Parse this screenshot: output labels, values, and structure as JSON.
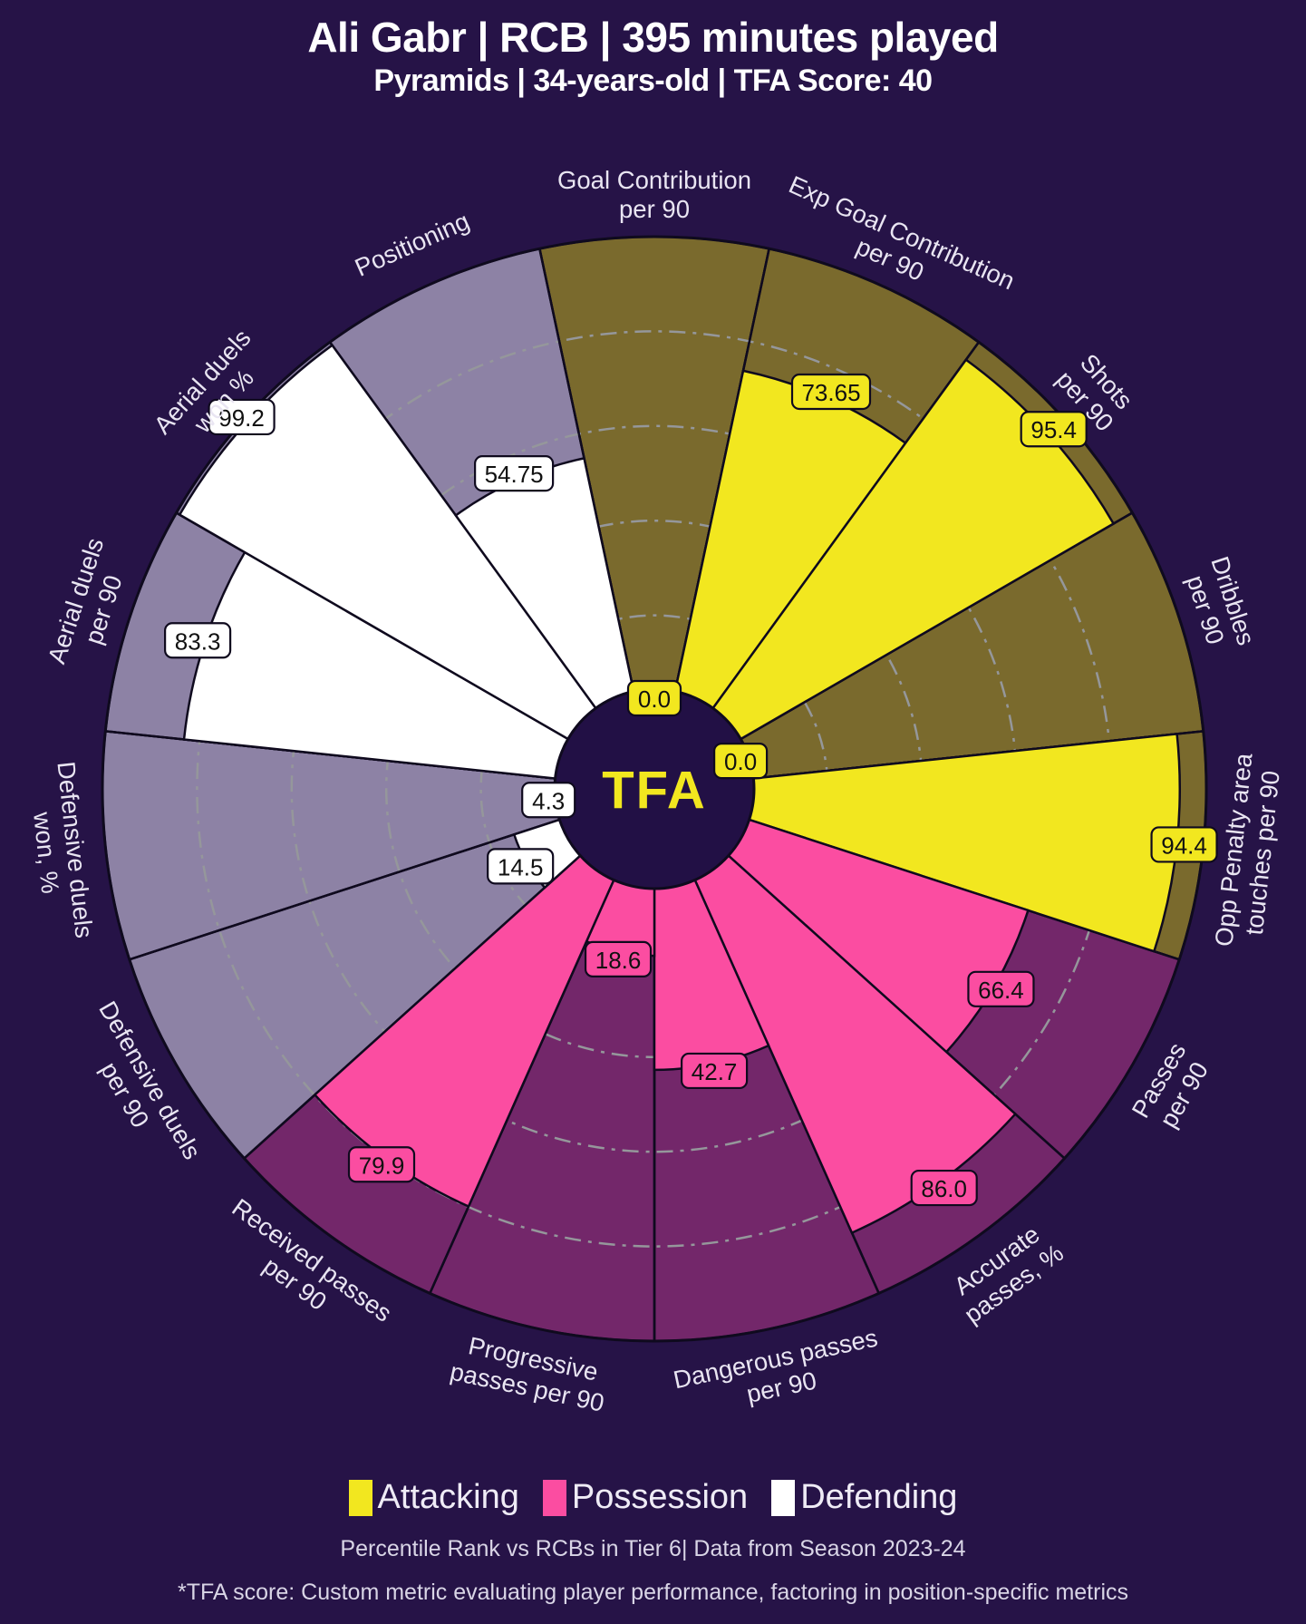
{
  "header": {
    "title": "Ali Gabr | RCB | 395 minutes played",
    "subtitle": "Pyramids | 34-years-old | TFA Score: 40"
  },
  "center_logo": "TFA",
  "legend": {
    "items": [
      {
        "label": "Attacking",
        "color": "#f2e71f"
      },
      {
        "label": "Possession",
        "color": "#fb4da1"
      },
      {
        "label": "Defending",
        "color": "#ffffff"
      }
    ]
  },
  "caption": "Percentile Rank vs RCBs in Tier 6| Data from Season 2023-24",
  "footnote": "*TFA score: Custom metric evaluating player performance, factoring in position-specific metrics",
  "colors": {
    "page_bg": "#261347",
    "center_circle": "#221045",
    "logo_text": "#f2e71f",
    "wedge_stroke": "#0f0a1e",
    "ring": "#95979b",
    "axis_label_text": "#e9e5f2",
    "value_text": "#111111"
  },
  "chart_data": {
    "type": "pie",
    "variant": "percentile-pizza-polar-bar",
    "title": "Ali Gabr | RCB | 395 minutes played",
    "subtitle": "Pyramids | 34-years-old | TFA Score: 40",
    "rlim": [
      0,
      100
    ],
    "ring_values": [
      20,
      40,
      60,
      80
    ],
    "grid": "dash-dot",
    "legend_position": "bottom",
    "groups": {
      "Attacking": {
        "color": "#f2e71f",
        "track": "#7a6a2d"
      },
      "Possession": {
        "color": "#fb4da1",
        "track": "#73276a"
      },
      "Defending": {
        "color": "#ffffff",
        "track": "#8d82a5"
      }
    },
    "slices": [
      {
        "label": "Goal Contribution per 90",
        "lines": [
          "Goal Contribution",
          "per 90"
        ],
        "value": 0.0,
        "display": "0.0",
        "group": "Attacking"
      },
      {
        "label": "Exp Goal Contribution per 90",
        "lines": [
          "Exp Goal Contribution",
          "per 90"
        ],
        "value": 73.65,
        "display": "73.65",
        "group": "Attacking"
      },
      {
        "label": "Shots per 90",
        "lines": [
          "Shots",
          "per 90"
        ],
        "value": 95.4,
        "display": "95.4",
        "group": "Attacking"
      },
      {
        "label": "Dribbles per 90",
        "lines": [
          "Dribbles",
          "per 90"
        ],
        "value": 0.0,
        "display": "0.0",
        "group": "Attacking"
      },
      {
        "label": "Opp Penalty area touches per 90",
        "lines": [
          "Opp Penalty area",
          "touches per 90"
        ],
        "value": 94.4,
        "display": "94.4",
        "group": "Attacking"
      },
      {
        "label": "Passes per 90",
        "lines": [
          "Passes",
          "per 90"
        ],
        "value": 66.4,
        "display": "66.4",
        "group": "Possession"
      },
      {
        "label": "Accurate passes, %",
        "lines": [
          "Accurate",
          "passes, %"
        ],
        "value": 86.0,
        "display": "86.0",
        "group": "Possession"
      },
      {
        "label": "Dangerous passes per 90",
        "lines": [
          "Dangerous passes",
          "per 90"
        ],
        "value": 42.7,
        "display": "42.7",
        "group": "Possession"
      },
      {
        "label": "Progressive passes per 90",
        "lines": [
          "Progressive",
          "passes per 90"
        ],
        "value": 18.6,
        "display": "18.6",
        "group": "Possession"
      },
      {
        "label": "Received passes per 90",
        "lines": [
          "Received passes",
          "per 90"
        ],
        "value": 79.9,
        "display": "79.9",
        "group": "Possession"
      },
      {
        "label": "Defensive duels per 90",
        "lines": [
          "Defensive duels",
          "per 90"
        ],
        "value": 14.5,
        "display": "14.5",
        "group": "Defending"
      },
      {
        "label": "Defensive duels won, %",
        "lines": [
          "Defensive duels",
          "won, %"
        ],
        "value": 4.3,
        "display": "4.3",
        "group": "Defending"
      },
      {
        "label": "Aerial duels per 90",
        "lines": [
          "Aerial duels",
          "per 90"
        ],
        "value": 83.3,
        "display": "83.3",
        "group": "Defending"
      },
      {
        "label": "Aerial duels won %",
        "lines": [
          "Aerial duels",
          "won %"
        ],
        "value": 99.2,
        "display": "99.2",
        "group": "Defending"
      },
      {
        "label": "Positioning",
        "lines": [
          "Positioning"
        ],
        "value": 54.75,
        "display": "54.75",
        "group": "Defending"
      }
    ]
  }
}
